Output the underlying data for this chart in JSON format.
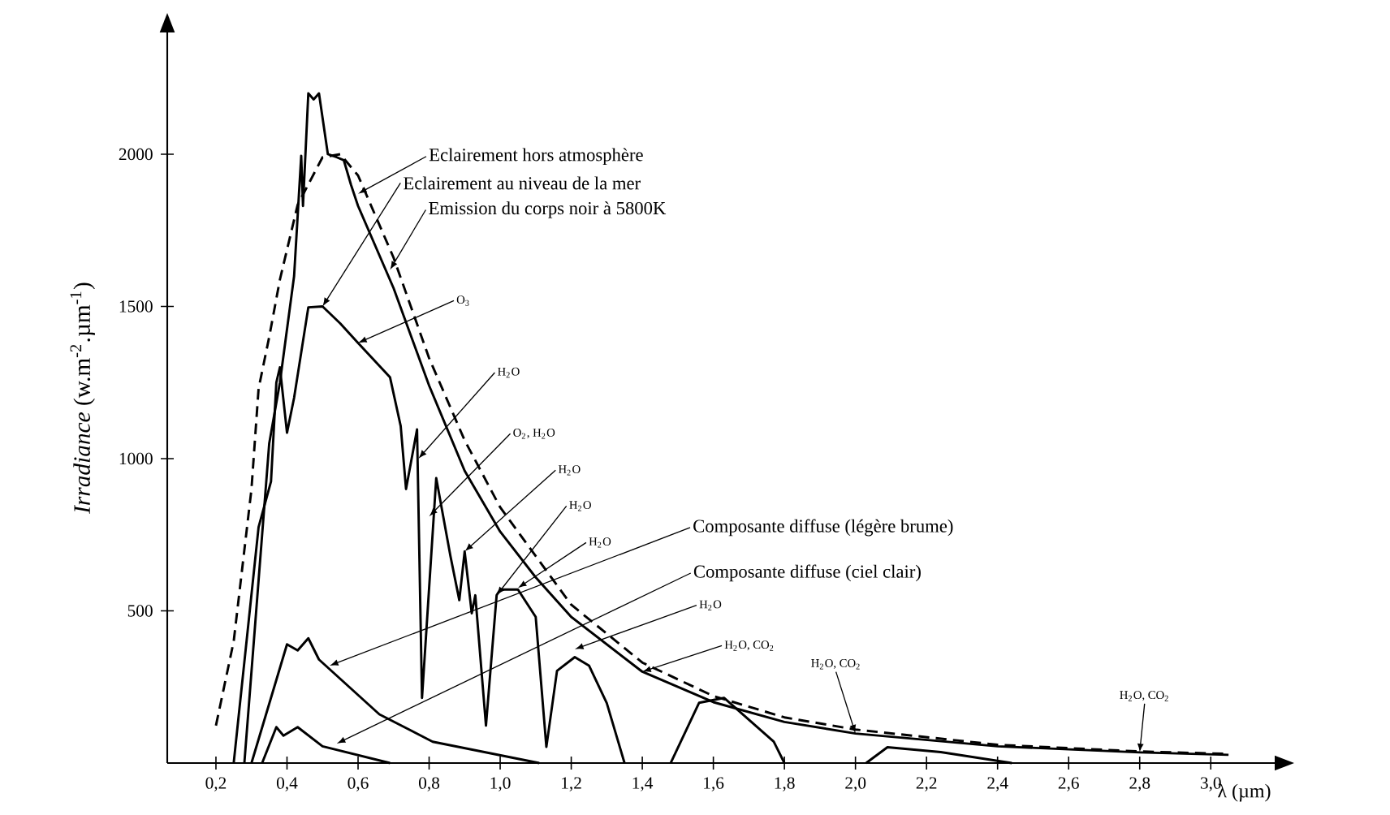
{
  "chart_data": {
    "type": "line",
    "xlabel": "λ (µm)",
    "ylabel": "*Irradiance* (w.m$^{-2}$.µm$^{-1}$)",
    "xlim": [
      0.063,
      3.18
    ],
    "ylim": [
      0,
      2400
    ],
    "xticks": [
      {
        "value": 0.2,
        "label": "0,2"
      },
      {
        "value": 0.4,
        "label": "0,4"
      },
      {
        "value": 0.6,
        "label": "0,6"
      },
      {
        "value": 0.8,
        "label": "0,8"
      },
      {
        "value": 1.0,
        "label": "1,0"
      },
      {
        "value": 1.2,
        "label": "1,2"
      },
      {
        "value": 1.4,
        "label": "1,4"
      },
      {
        "value": 1.6,
        "label": "1,6"
      },
      {
        "value": 1.8,
        "label": "1,8"
      },
      {
        "value": 2.0,
        "label": "2,0"
      },
      {
        "value": 2.2,
        "label": "2,2"
      },
      {
        "value": 2.4,
        "label": "2,4"
      },
      {
        "value": 2.6,
        "label": "2,6"
      },
      {
        "value": 2.8,
        "label": "2,8"
      },
      {
        "value": 3.0,
        "label": "3,0"
      }
    ],
    "yticks": [
      500,
      1000,
      1500,
      2000
    ],
    "series": [
      {
        "color": "#000000",
        "line_style": "solid",
        "x": [
          0.28,
          0.32,
          0.35,
          0.38,
          0.42,
          0.44,
          0.445,
          0.46,
          0.475,
          0.49,
          0.515,
          0.54,
          0.56,
          0.58,
          0.6,
          0.7,
          0.8,
          0.9,
          1.0,
          1.1,
          1.2,
          1.4,
          1.6,
          1.8,
          2.0,
          2.4,
          2.8,
          3.05
        ],
        "values": [
          0,
          600,
          1050,
          1250,
          1600,
          1995,
          1830,
          2200,
          2180,
          2200,
          2000,
          1990,
          1980,
          1900,
          1830,
          1560,
          1240,
          960,
          760,
          610,
          480,
          300,
          200,
          135,
          97,
          55,
          35,
          27
        ]
      },
      {
        "color": "#000000",
        "line_style": "solid",
        "x": [
          0.25,
          0.32,
          0.355,
          0.37,
          0.38,
          0.4,
          0.42,
          0.46,
          0.5,
          0.55,
          0.6,
          0.69,
          0.72,
          0.735,
          0.766,
          0.78,
          0.82,
          0.86,
          0.885,
          0.9,
          0.92,
          0.93,
          0.96,
          0.99,
          1.0,
          1.05,
          1.1,
          1.13,
          1.16,
          1.21,
          1.25,
          1.3,
          1.35
        ],
        "values": [
          0,
          775,
          925,
          1250,
          1300,
          1085,
          1200,
          1497,
          1500,
          1444,
          1380,
          1267,
          1107,
          900,
          1096,
          214,
          936,
          680,
          535,
          695,
          492,
          551,
          123,
          551,
          570,
          570,
          480,
          53,
          303,
          348,
          320,
          197,
          0
        ]
      },
      {
        "color": "#000000",
        "line_style": "solid",
        "x": [
          1.48,
          1.56,
          1.63,
          1.77,
          1.8
        ],
        "values": [
          0,
          198,
          214,
          70,
          0
        ]
      },
      {
        "color": "#000000",
        "line_style": "solid",
        "x": [
          2.03,
          2.09,
          2.24,
          2.44
        ],
        "values": [
          0,
          52,
          36,
          0
        ]
      },
      {
        "color": "#000000",
        "line_style": "dashed",
        "x": [
          0.2,
          0.25,
          0.3,
          0.32,
          0.35,
          0.38,
          0.43,
          0.5,
          0.55,
          0.6,
          0.7,
          0.8,
          0.9,
          1.0,
          1.2,
          1.4,
          1.6,
          1.8,
          2.0,
          2.4,
          2.8,
          3.05
        ],
        "values": [
          123,
          400,
          900,
          1230,
          1400,
          1588,
          1834,
          1990,
          2000,
          1930,
          1660,
          1330,
          1060,
          840,
          520,
          330,
          220,
          150,
          110,
          60,
          38,
          30
        ]
      },
      {
        "color": "#000000",
        "line_style": "solid",
        "x": [
          0.3,
          0.4,
          0.43,
          0.46,
          0.49,
          0.66,
          0.81,
          1.11
        ],
        "values": [
          0,
          390,
          370,
          410,
          340,
          160,
          70,
          0
        ]
      },
      {
        "color": "#000000",
        "line_style": "solid",
        "x": [
          0.33,
          0.37,
          0.39,
          0.43,
          0.5,
          0.69
        ],
        "values": [
          0,
          118,
          90,
          118,
          55,
          0
        ]
      }
    ],
    "annotations": [
      {
        "text": "Eclairement hors atmosphère",
        "x": 0.6,
        "y": 1870
      },
      {
        "text": "Eclairement au niveau de la mer",
        "x": 0.5,
        "y": 1500
      },
      {
        "text": "Emission du corps noir à 5800K",
        "x": 0.69,
        "y": 1620
      },
      {
        "text": "O$_{3}$",
        "x": 0.6,
        "y": 1380
      },
      {
        "text": "H$_{2}$O",
        "x": 0.77,
        "y": 1000
      },
      {
        "text": "O$_{2}$, H$_{2}$O",
        "x": 0.8,
        "y": 810
      },
      {
        "text": "H$_{2}$O",
        "x": 0.9,
        "y": 695
      },
      {
        "text": "H$_{2}$O",
        "x": 0.99,
        "y": 551
      },
      {
        "text": "H$_{2}$O",
        "x": 1.05,
        "y": 575
      },
      {
        "text": "Composante diffuse (légère brume)",
        "x": 0.52,
        "y": 320
      },
      {
        "text": "Composante diffuse (ciel clair)",
        "x": 0.54,
        "y": 64
      },
      {
        "text": "H$_{2}$O",
        "x": 1.21,
        "y": 374
      },
      {
        "text": "H$_{2}$O, CO$_{2}$",
        "x": 1.4,
        "y": 300
      },
      {
        "text": "H$_{2}$O, CO$_{2}$",
        "x": 2.0,
        "y": 97
      },
      {
        "text": "H$_{2}$O, CO$_{2}$",
        "x": 2.8,
        "y": 35
      }
    ]
  }
}
